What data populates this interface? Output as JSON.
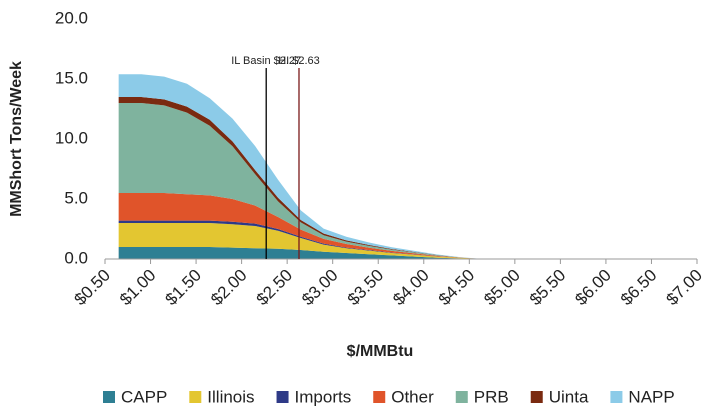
{
  "chart_data": {
    "type": "stacked-area",
    "x_label": "$/MMBtu",
    "y_label": "MMShort Tons/Week",
    "x": [
      0.65,
      0.9,
      1.15,
      1.4,
      1.65,
      1.9,
      2.15,
      2.4,
      2.65,
      2.9,
      3.15,
      3.4,
      3.65,
      3.9,
      4.15,
      4.4,
      4.65
    ],
    "series": [
      {
        "name": "CAPP",
        "color": "#2e7f93",
        "values": [
          1.0,
          1.0,
          1.0,
          1.0,
          1.0,
          0.95,
          0.9,
          0.85,
          0.75,
          0.6,
          0.5,
          0.4,
          0.3,
          0.2,
          0.1,
          0.05,
          0
        ]
      },
      {
        "name": "Illinois",
        "color": "#e3c631",
        "values": [
          2.0,
          2.0,
          2.0,
          2.0,
          2.0,
          1.95,
          1.85,
          1.5,
          1.0,
          0.6,
          0.4,
          0.3,
          0.2,
          0.15,
          0.1,
          0.05,
          0
        ]
      },
      {
        "name": "Imports",
        "color": "#2e3a87",
        "values": [
          0.2,
          0.2,
          0.2,
          0.2,
          0.2,
          0.2,
          0.2,
          0.15,
          0.1,
          0.08,
          0.05,
          0.04,
          0.03,
          0.02,
          0.01,
          0,
          0
        ]
      },
      {
        "name": "Other",
        "color": "#e0542a",
        "values": [
          2.3,
          2.3,
          2.3,
          2.2,
          2.1,
          1.9,
          1.5,
          1.0,
          0.6,
          0.4,
          0.3,
          0.2,
          0.15,
          0.1,
          0.05,
          0.02,
          0
        ]
      },
      {
        "name": "PRB",
        "color": "#7fb39e",
        "values": [
          7.5,
          7.5,
          7.3,
          6.8,
          5.8,
          4.4,
          2.6,
          1.3,
          0.6,
          0.3,
          0.2,
          0.15,
          0.1,
          0.08,
          0.05,
          0.02,
          0
        ]
      },
      {
        "name": "Uinta",
        "color": "#7a2a10",
        "values": [
          0.5,
          0.5,
          0.5,
          0.5,
          0.5,
          0.4,
          0.35,
          0.3,
          0.2,
          0.15,
          0.1,
          0.08,
          0.05,
          0.03,
          0.02,
          0,
          0
        ]
      },
      {
        "name": "NAPP",
        "color": "#8ccbe8",
        "values": [
          1.9,
          1.9,
          1.9,
          1.9,
          1.8,
          1.9,
          2.0,
          1.5,
          0.8,
          0.4,
          0.3,
          0.2,
          0.15,
          0.1,
          0.05,
          0.02,
          0
        ]
      }
    ],
    "annotations": [
      {
        "text": "IL Basin $2.27",
        "x": 2.27,
        "color": "#000000"
      },
      {
        "text": "HI $2.63",
        "x": 2.63,
        "color": "#7a1a1a"
      }
    ],
    "xlim": [
      0.5,
      7.0
    ],
    "xticks": [
      {
        "value": 0.5,
        "label": "$0.50"
      },
      {
        "value": 1.0,
        "label": "$1.00"
      },
      {
        "value": 1.5,
        "label": "$1.50"
      },
      {
        "value": 2.0,
        "label": "$2.00"
      },
      {
        "value": 2.5,
        "label": "$2.50"
      },
      {
        "value": 3.0,
        "label": "$3.00"
      },
      {
        "value": 3.5,
        "label": "$3.50"
      },
      {
        "value": 4.0,
        "label": "$4.00"
      },
      {
        "value": 4.5,
        "label": "$4.50"
      },
      {
        "value": 5.0,
        "label": "$5.00"
      },
      {
        "value": 5.5,
        "label": "$5.50"
      },
      {
        "value": 6.0,
        "label": "$6.00"
      },
      {
        "value": 6.5,
        "label": "$6.50"
      },
      {
        "value": 7.0,
        "label": "$7.00"
      }
    ],
    "ylim": [
      0,
      20
    ],
    "yticks": [
      {
        "value": 0,
        "label": "0.0"
      },
      {
        "value": 5,
        "label": "5.0"
      },
      {
        "value": 10,
        "label": "10.0"
      },
      {
        "value": 15,
        "label": "15.0"
      },
      {
        "value": 20,
        "label": "20.0"
      }
    ],
    "legend": "bottom"
  }
}
